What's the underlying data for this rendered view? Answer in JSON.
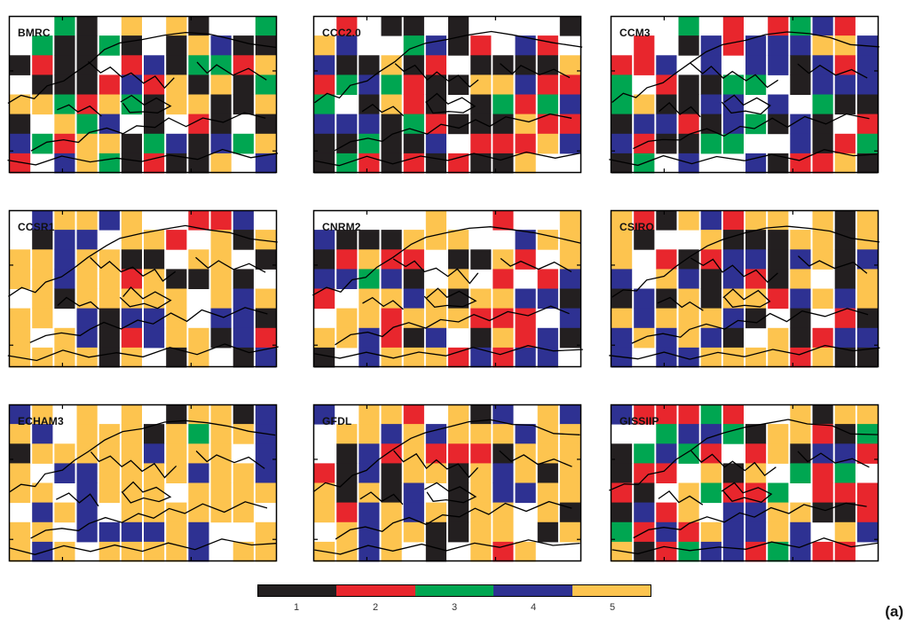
{
  "panels": [
    {
      "title": "BMRC",
      "class_weights": [
        30,
        22,
        12,
        18,
        18
      ],
      "dominant": 1
    },
    {
      "title": "CCC2.0",
      "class_weights": [
        32,
        28,
        10,
        20,
        10
      ],
      "dominant": 1
    },
    {
      "title": "CCM3",
      "class_weights": [
        22,
        20,
        20,
        32,
        6
      ],
      "dominant": 4
    },
    {
      "title": "CCSR1",
      "class_weights": [
        20,
        6,
        0,
        28,
        46
      ],
      "dominant": 5
    },
    {
      "title": "CNRM2",
      "class_weights": [
        18,
        16,
        2,
        20,
        44
      ],
      "dominant": 5
    },
    {
      "title": "CSIRO",
      "class_weights": [
        30,
        8,
        0,
        28,
        34
      ],
      "dominant": 5
    },
    {
      "title": "ECHAM3",
      "class_weights": [
        8,
        2,
        1,
        24,
        65
      ],
      "dominant": 5
    },
    {
      "title": "GFDL",
      "class_weights": [
        16,
        12,
        0,
        16,
        56
      ],
      "dominant": 5
    },
    {
      "title": "GISSIIP",
      "class_weights": [
        14,
        26,
        14,
        22,
        24
      ],
      "dominant": 2
    }
  ],
  "legend": {
    "classes": [
      {
        "label": "1",
        "color": "#231f20"
      },
      {
        "label": "2",
        "color": "#e8262d"
      },
      {
        "label": "3",
        "color": "#00a651"
      },
      {
        "label": "4",
        "color": "#2e3192"
      },
      {
        "label": "5",
        "color": "#fdc44f"
      }
    ]
  },
  "panel_label": "(a)"
}
